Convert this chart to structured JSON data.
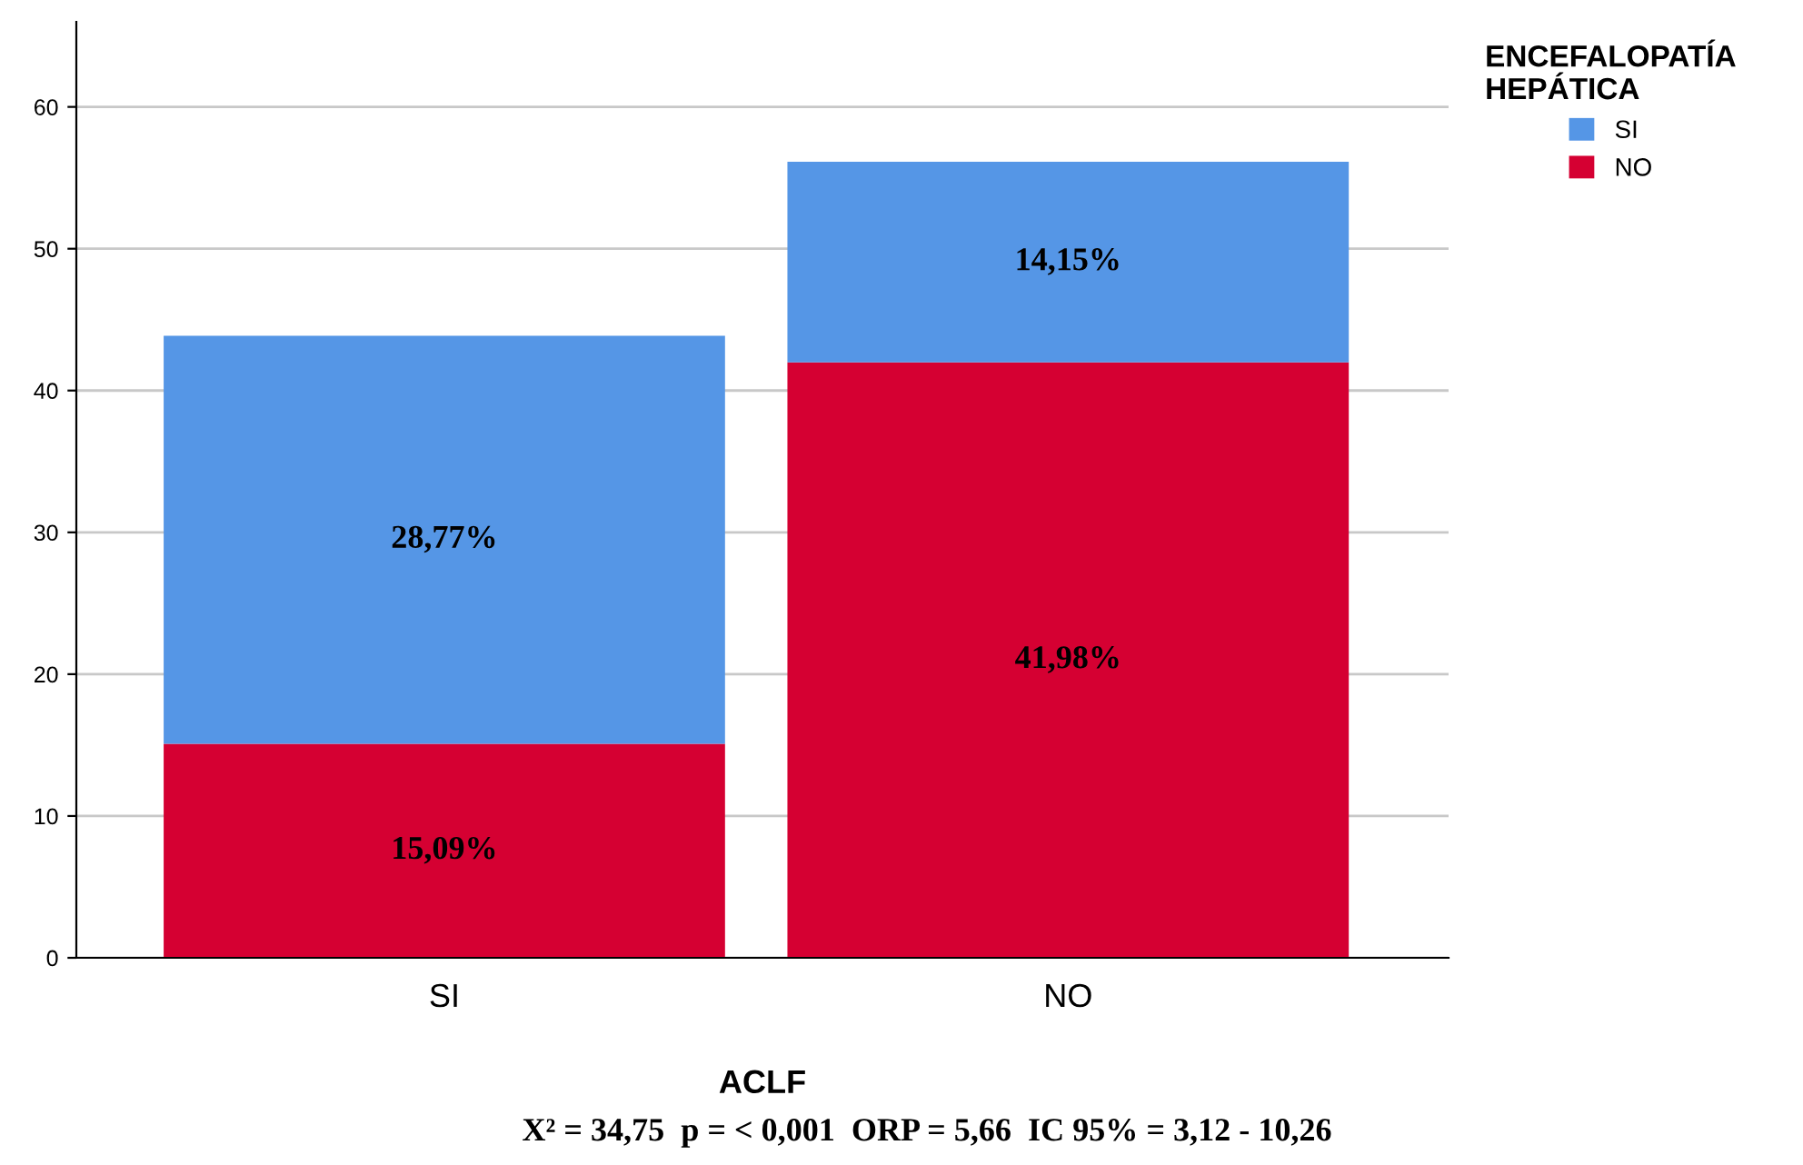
{
  "chart_data": {
    "type": "bar",
    "stacked": true,
    "xlabel": "ACLF",
    "legend_title": "ENCEFALOPATÍA\nHEPÁTICA",
    "categories": [
      "SI",
      "NO"
    ],
    "series": [
      {
        "name": "NO",
        "color": "#d50032",
        "values": [
          15.09,
          41.98
        ],
        "value_labels": [
          "15,09%",
          "41,98%"
        ]
      },
      {
        "name": "SI",
        "color": "#5596e6",
        "values": [
          28.77,
          14.15
        ],
        "value_labels": [
          "28,77%",
          "14,15%"
        ]
      }
    ],
    "ylim": [
      0,
      66
    ],
    "yticks": [
      0,
      10,
      20,
      30,
      40,
      50,
      60
    ],
    "grid": "y",
    "legend": "top right",
    "annotations": [
      "X² = 34,75  p = < 0,001  ORP = 5,66  IC 95% = 3,12 - 10,26"
    ]
  }
}
